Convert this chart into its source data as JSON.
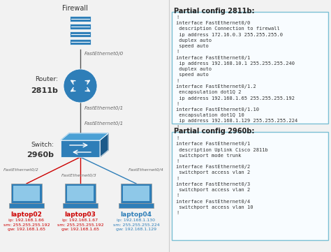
{
  "background_color": "#f5f5f5",
  "config_2811b_title": "Partial config 2811b:",
  "config_2811b_text": "!\ninterface FastEthernet0/0\n description Connection to firewall\n ip address 172.16.0.3 255.255.255.0\n duplex auto\n speed auto\n!\ninterface FastEthernet0/1\n ip address 192.168.10.1 255.255.255.240\n duplex auto\n speed auto\n!\ninterface FastEthernet0/1.2\n encapsulation dot1Q 2\n ip address 192.168.1.65 255.255.255.192\n!\ninterface FastEthernet0/1.10\n encapsulation dot1Q 10\n ip address 192.168.1.129 255.255.255.224\n!",
  "config_2960b_title": "Partial config 2960b:",
  "config_2960b_text": "!\ninterface FastEthernet0/1\n description Uplink Cisco 2811b\n switchport mode trunk\n!\ninterface FastEthernet0/2\n switchport access vlan 2\n!\ninterface FastEthernet0/3\n switchport access vlan 2\n!\ninterface FastEthernet0/4\n switchport access vlan 10\n!",
  "laptop02_label": "laptop02",
  "laptop02_info": "ip: 192.168.1.66\nsm: 255.255.255.192\ngw: 192.168.1.65",
  "laptop03_label": "laptop03",
  "laptop03_info": "ip: 192.168.1.67\nsm: 255.255.255.192\ngw: 192.168.1.65",
  "laptop04_label": "laptop04",
  "laptop04_info": "ip: 192.168.1.130\nsm: 255.255.255.224\ngw: 192.168.1.129",
  "firewall_label": "Firewall",
  "link_fw_router": "FastEthernet0/0",
  "link_router_switch_top": "FastEthernet0/1",
  "link_router_switch_bot": "FastEthernet0/1",
  "link_sw_l02": "FastEthernet0/2",
  "link_sw_l03": "FastEthernet0/3",
  "link_sw_l04": "FastEthernet0/4",
  "device_color": "#2e7eb8",
  "device_dark": "#1c5a8a",
  "device_light": "#4aa0d5",
  "red_color": "#cc0000",
  "blue_color": "#2e7eb8",
  "box_border": "#7bbfd4",
  "box_fill": "#f8fcff",
  "line_color": "#555555"
}
